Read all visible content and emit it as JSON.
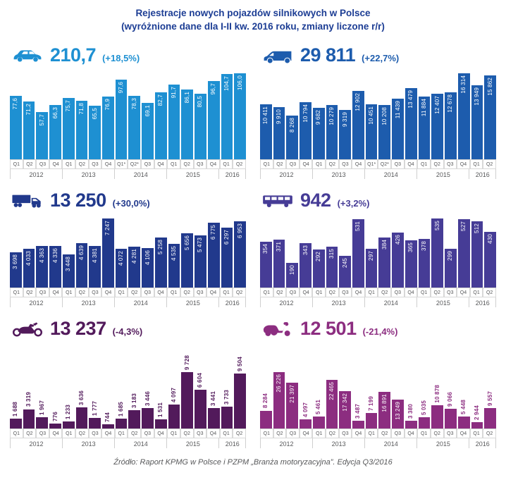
{
  "title": {
    "line1": "Rejestracje nowych pojazdów silnikowych w Polsce",
    "line2": "(wyróżnione dane dla I-II kw. 2016 roku, zmiany liczone r/r)"
  },
  "footer": {
    "text": "Źródło: Raport KPMG w Polsce i PZPM „Branża motoryzacyjna”. Edycja Q3/2016"
  },
  "colors": {
    "title_navy": "#1C3D94",
    "axis_text": "#58595B",
    "axis_border": "#CFCFCF"
  },
  "chart_data": [
    {
      "id": "passenger-cars",
      "type": "bar",
      "icon": "car-icon",
      "headline": "210,7",
      "change": "(+18,5%)",
      "color": "#1E90D2",
      "label_style": "inside",
      "categories": [
        "Q1",
        "Q2",
        "Q3",
        "Q4",
        "Q1",
        "Q2",
        "Q3",
        "Q4",
        "Q1*",
        "Q2*",
        "Q3",
        "Q4",
        "Q1",
        "Q2",
        "Q3",
        "Q4",
        "Q1",
        "Q2"
      ],
      "years": [
        {
          "label": "2012",
          "span": 4
        },
        {
          "label": "2013",
          "span": 4
        },
        {
          "label": "2014",
          "span": 4
        },
        {
          "label": "2015",
          "span": 4
        },
        {
          "label": "2016",
          "span": 2
        }
      ],
      "values": [
        77.6,
        71.2,
        57.7,
        66.3,
        75.7,
        71.8,
        65.5,
        76.9,
        97.6,
        78.3,
        69.1,
        82.7,
        91.7,
        86.1,
        80.5,
        96.7,
        104.7,
        106.0
      ],
      "value_labels": [
        "77,6",
        "71,2",
        "57,7",
        "66,3",
        "75,7",
        "71,8",
        "65,5",
        "76,9",
        "97,6",
        "78,3",
        "69,1",
        "82,7",
        "91,7",
        "86,1",
        "80,5",
        "96,7",
        "104,7",
        "106,0"
      ],
      "ylim": [
        0,
        106.0
      ],
      "grid": false,
      "legend": "none"
    },
    {
      "id": "vans",
      "type": "bar",
      "icon": "van-icon",
      "headline": "29 811",
      "change": "(+22,7%)",
      "color": "#1D5CAD",
      "label_style": "inside",
      "categories": [
        "Q1",
        "Q2",
        "Q3",
        "Q4",
        "Q1",
        "Q2",
        "Q3",
        "Q4",
        "Q1*",
        "Q2*",
        "Q3",
        "Q4",
        "Q1",
        "Q2",
        "Q3",
        "Q4",
        "Q1",
        "Q2"
      ],
      "years": [
        {
          "label": "2012",
          "span": 4
        },
        {
          "label": "2013",
          "span": 4
        },
        {
          "label": "2014",
          "span": 4
        },
        {
          "label": "2015",
          "span": 4
        },
        {
          "label": "2016",
          "span": 2
        }
      ],
      "values": [
        10411,
        9910,
        8268,
        10794,
        9682,
        10279,
        9319,
        12902,
        10451,
        10208,
        11439,
        13479,
        11884,
        12407,
        12678,
        16314,
        13949,
        15862
      ],
      "value_labels": [
        "10 411",
        "9 910",
        "8 268",
        "10 794",
        "9 682",
        "10 279",
        "9 319",
        "12 902",
        "10 451",
        "10 208",
        "11 439",
        "13 479",
        "11 884",
        "12 407",
        "12 678",
        "16 314",
        "13 949",
        "15 862"
      ],
      "ylim": [
        0,
        16314
      ],
      "grid": false,
      "legend": "none"
    },
    {
      "id": "trucks",
      "type": "bar",
      "icon": "truck-icon",
      "headline": "13 250",
      "change": "(+30,0%)",
      "color": "#21398C",
      "label_style": "inside",
      "categories": [
        "Q1",
        "Q2",
        "Q3",
        "Q4",
        "Q1",
        "Q2",
        "Q3",
        "Q4",
        "Q1",
        "Q2",
        "Q3",
        "Q4",
        "Q1",
        "Q2",
        "Q3",
        "Q4",
        "Q1",
        "Q2"
      ],
      "years": [
        {
          "label": "2012",
          "span": 4
        },
        {
          "label": "2013",
          "span": 4
        },
        {
          "label": "2014",
          "span": 4
        },
        {
          "label": "2015",
          "span": 4
        },
        {
          "label": "2016",
          "span": 2
        }
      ],
      "values": [
        3698,
        4033,
        4363,
        4336,
        3448,
        4639,
        4381,
        7247,
        4072,
        4281,
        4106,
        5258,
        4535,
        5656,
        5473,
        6775,
        6297,
        6953
      ],
      "value_labels": [
        "3 698",
        "4 033",
        "4 363",
        "4 336",
        "3 448",
        "4 639",
        "4 381",
        "7 247",
        "4 072",
        "4 281",
        "4 106",
        "5 258",
        "4 535",
        "5 656",
        "5 473",
        "6 775",
        "6 297",
        "6 953"
      ],
      "ylim": [
        0,
        7247
      ],
      "grid": false,
      "legend": "none"
    },
    {
      "id": "buses",
      "type": "bar",
      "icon": "bus-icon",
      "headline": "942",
      "change": "(+3,2%)",
      "color": "#463C96",
      "label_style": "inside",
      "categories": [
        "Q1",
        "Q2",
        "Q3",
        "Q4",
        "Q1",
        "Q2",
        "Q3",
        "Q4",
        "Q1",
        "Q2",
        "Q3",
        "Q4",
        "Q1",
        "Q2",
        "Q3",
        "Q4",
        "Q1",
        "Q2"
      ],
      "years": [
        {
          "label": "2012",
          "span": 4
        },
        {
          "label": "2013",
          "span": 4
        },
        {
          "label": "2014",
          "span": 4
        },
        {
          "label": "2015",
          "span": 4
        },
        {
          "label": "2016",
          "span": 2
        }
      ],
      "values": [
        354,
        371,
        190,
        343,
        292,
        315,
        245,
        531,
        297,
        384,
        426,
        365,
        378,
        535,
        299,
        527,
        512,
        430
      ],
      "value_labels": [
        "354",
        "371",
        "190",
        "343",
        "292",
        "315",
        "245",
        "531",
        "297",
        "384",
        "426",
        "365",
        "378",
        "535",
        "299",
        "527",
        "512",
        "430"
      ],
      "ylim": [
        0,
        535
      ],
      "grid": false,
      "legend": "none"
    },
    {
      "id": "motorcycles",
      "type": "bar",
      "icon": "motorcycle-icon",
      "headline": "13 237",
      "change": "(-4,3%)",
      "color": "#521A5B",
      "label_style": "outside",
      "categories": [
        "Q1",
        "Q2",
        "Q3",
        "Q4",
        "Q1",
        "Q2",
        "Q3",
        "Q4",
        "Q1",
        "Q2",
        "Q3",
        "Q4",
        "Q1",
        "Q2",
        "Q3",
        "Q4",
        "Q1",
        "Q2"
      ],
      "years": [
        {
          "label": "2012",
          "span": 4
        },
        {
          "label": "2013",
          "span": 4
        },
        {
          "label": "2014",
          "span": 4
        },
        {
          "label": "2015",
          "span": 4
        },
        {
          "label": "2016",
          "span": 2
        }
      ],
      "values": [
        1688,
        3319,
        1967,
        776,
        1233,
        3636,
        1777,
        744,
        1685,
        3183,
        3446,
        1531,
        4097,
        9728,
        6604,
        3441,
        3733,
        9504
      ],
      "value_labels": [
        "1 688",
        "3 319",
        "1 967",
        "776",
        "1 233",
        "3 636",
        "1 777",
        "744",
        "1 685",
        "3 183",
        "3 446",
        "1 531",
        "4 097",
        "9 728",
        "6 604",
        "3 441",
        "3 733",
        "9 504"
      ],
      "ylim": [
        0,
        9728
      ],
      "grid": false,
      "legend": "none"
    },
    {
      "id": "mopeds",
      "type": "bar",
      "icon": "scooter-icon",
      "headline": "12 501",
      "change": "(-21,4%)",
      "color": "#8C2D80",
      "label_style": "auto",
      "categories": [
        "Q1",
        "Q2",
        "Q3",
        "Q4",
        "Q1",
        "Q2",
        "Q3",
        "Q4",
        "Q1",
        "Q2",
        "Q3",
        "Q4",
        "Q1",
        "Q2",
        "Q3",
        "Q4",
        "Q1",
        "Q2"
      ],
      "years": [
        {
          "label": "2012",
          "span": 4
        },
        {
          "label": "2013",
          "span": 4
        },
        {
          "label": "2014",
          "span": 4
        },
        {
          "label": "2015",
          "span": 4
        },
        {
          "label": "2016",
          "span": 2
        }
      ],
      "values": [
        8284,
        26226,
        21397,
        4097,
        5461,
        22465,
        17342,
        3487,
        7199,
        16891,
        13249,
        3380,
        5035,
        10878,
        9066,
        5448,
        2944,
        9557
      ],
      "value_labels": [
        "8 284",
        "26 226",
        "21 397",
        "4 097",
        "5 461",
        "22 465",
        "17 342",
        "3 487",
        "7 199",
        "16 891",
        "13 249",
        "3 380",
        "5 035",
        "10 878",
        "9 066",
        "5 448",
        "2 944",
        "9 557"
      ],
      "ylim": [
        0,
        26226
      ],
      "grid": false,
      "legend": "none"
    }
  ]
}
